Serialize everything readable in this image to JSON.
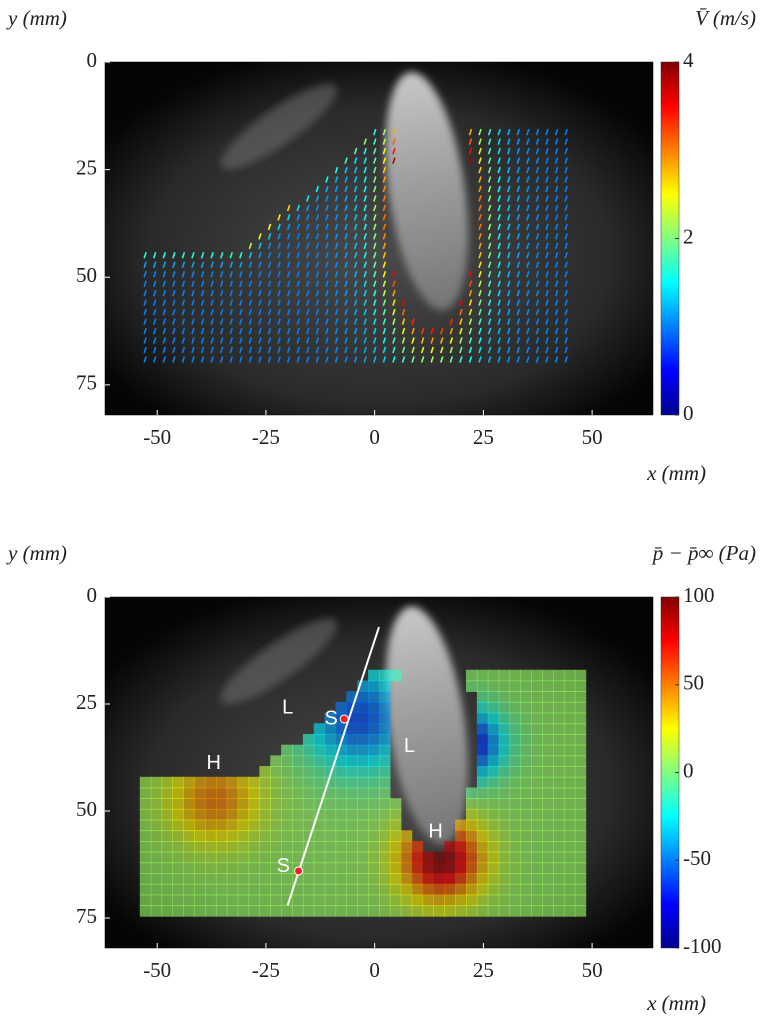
{
  "chart_data": [
    {
      "type": "vector-field",
      "x_label": "x (mm)",
      "y_label": "y (mm)",
      "colorbar_label": "V̄ (m/s)",
      "xlim": [
        -62,
        64
      ],
      "xticks": [
        -50,
        -25,
        0,
        25,
        50
      ],
      "ylim": [
        0,
        82
      ],
      "yticks": [
        0,
        25,
        50,
        75
      ],
      "y_inverted": true,
      "clim": [
        0,
        4
      ],
      "cticks": [
        0,
        2,
        4
      ],
      "colormap": "jet"
    },
    {
      "type": "pressure-field",
      "x_label": "x (mm)",
      "y_label": "y (mm)",
      "colorbar_label": "p̄ − p̄∞ (Pa)",
      "xlim": [
        -62,
        64
      ],
      "xticks": [
        -50,
        -25,
        0,
        25,
        50
      ],
      "ylim": [
        0,
        82
      ],
      "yticks": [
        0,
        25,
        50,
        75
      ],
      "y_inverted": true,
      "clim": [
        -100,
        100
      ],
      "cticks": [
        -100,
        -50,
        0,
        50,
        100
      ],
      "colormap": "jet",
      "annotations": [
        "L",
        "S",
        "L",
        "H",
        "H",
        "S"
      ]
    }
  ]
}
